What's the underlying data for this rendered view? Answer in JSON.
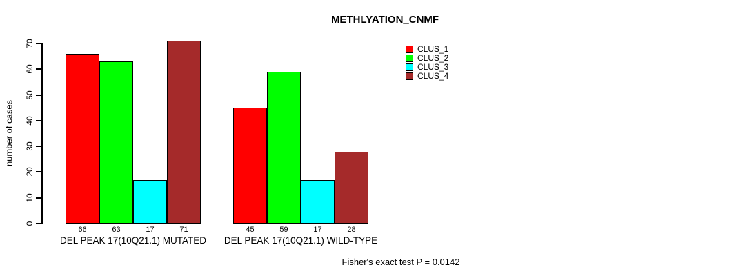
{
  "title": "METHLYATION_CNMF",
  "chart_data": {
    "type": "bar",
    "title": "METHLYATION_CNMF",
    "ylabel": "number of cases",
    "xlabel": "",
    "ylim": [
      0,
      70
    ],
    "yticks": [
      0,
      10,
      20,
      30,
      40,
      50,
      60,
      70
    ],
    "grid": false,
    "legend_position": "top-right-inside",
    "categories": [
      "DEL PEAK 17(10Q21.1) MUTATED",
      "DEL PEAK 17(10Q21.1) WILD-TYPE"
    ],
    "series": [
      {
        "name": "CLUS_1",
        "color": "#FF0000",
        "values": [
          66,
          45
        ]
      },
      {
        "name": "CLUS_2",
        "color": "#00FF00",
        "values": [
          63,
          59
        ]
      },
      {
        "name": "CLUS_3",
        "color": "#00FFFF",
        "values": [
          17,
          17
        ]
      },
      {
        "name": "CLUS_4",
        "color": "#A52A2A",
        "values": [
          71,
          28
        ]
      }
    ],
    "bar_value_labels": [
      [
        66,
        63,
        17,
        71
      ],
      [
        45,
        59,
        17,
        28
      ]
    ],
    "annotation": "Fisher's exact test P = 0.0142"
  },
  "colors": {
    "background": "#FFFFFF",
    "axis": "#000000",
    "text": "#000000"
  }
}
